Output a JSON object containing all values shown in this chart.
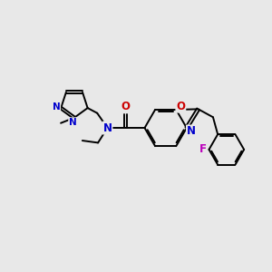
{
  "bg_color": "#e8e8e8",
  "bond_color": "#000000",
  "bond_width": 1.4,
  "atom_colors": {
    "N": "#0000cc",
    "O": "#cc0000",
    "F": "#bb00bb",
    "C": "#000000"
  },
  "font_size": 7.5
}
